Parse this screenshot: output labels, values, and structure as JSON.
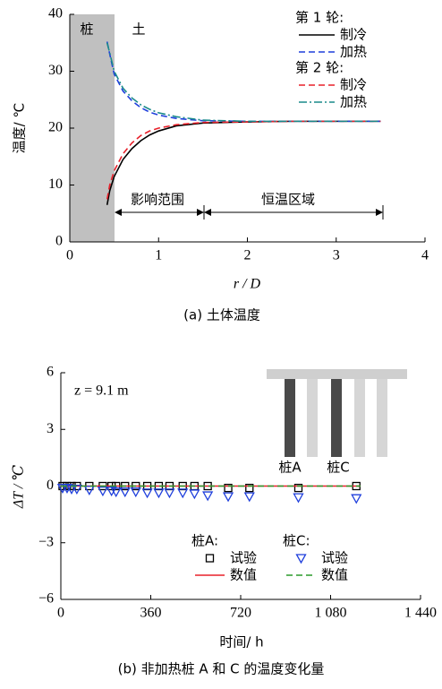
{
  "chart_data": [
    {
      "type": "line",
      "caption": "(a)  土体温度",
      "xlabel": "r / D",
      "ylabel": "温度/ ℃",
      "xlim": [
        0,
        4
      ],
      "ylim": [
        0,
        40
      ],
      "xticks": [
        0,
        1,
        2,
        3,
        4
      ],
      "yticks": [
        0,
        10,
        20,
        30,
        40
      ],
      "annotations": [
        "桩",
        "土",
        "影响范围",
        "恒温区域"
      ],
      "x": [
        0.42,
        0.45,
        0.5,
        0.6,
        0.7,
        0.8,
        0.9,
        1.0,
        1.2,
        1.5,
        2,
        2.5,
        3,
        3.5
      ],
      "groups": [
        {
          "name": "第 1 轮:",
          "series": [
            {
              "name": "制冷",
              "color": "#000000",
              "style": "solid",
              "values": [
                6.5,
                9,
                11.5,
                14.5,
                16.4,
                17.8,
                18.8,
                19.5,
                20.4,
                20.9,
                21.1,
                21.2,
                21.2,
                21.2
              ]
            },
            {
              "name": "加热",
              "color": "#1f3fdc",
              "style": "dashed",
              "values": [
                35.2,
                33,
                29.5,
                26.5,
                24.8,
                23.6,
                22.8,
                22.3,
                21.7,
                21.3,
                21.2,
                21.2,
                21.2,
                21.2
              ]
            }
          ]
        },
        {
          "name": "第 2 轮:",
          "series": [
            {
              "name": "制冷",
              "color": "#e8202a",
              "style": "dashed",
              "values": [
                7.5,
                10,
                12.5,
                15.5,
                17.4,
                18.7,
                19.5,
                20.0,
                20.6,
                21.0,
                21.1,
                21.2,
                21.2,
                21.2
              ]
            },
            {
              "name": "加热",
              "color": "#1a8a8a",
              "style": "dashdot",
              "values": [
                35,
                33.2,
                30,
                27,
                25.3,
                24.1,
                23.3,
                22.7,
                22,
                21.4,
                21.2,
                21.2,
                21.2,
                21.2
              ]
            }
          ]
        }
      ]
    },
    {
      "type": "line",
      "caption": "(b)  非加热桩 A 和 C 的温度变化量",
      "xlabel": "时间/ h",
      "ylabel": "ΔT / ℃",
      "xlim": [
        0,
        1440
      ],
      "ylim": [
        -6,
        6
      ],
      "xticks": [
        0,
        360,
        720,
        {
          "value": 1080,
          "label": "1 080"
        },
        {
          "value": 1440,
          "label": "1 440"
        }
      ],
      "yticks": [
        {
          "value": -6,
          "label": "−6"
        },
        {
          "value": -3,
          "label": "−3"
        },
        0,
        3,
        6
      ],
      "annotations": [
        "z = 9.1 m",
        "桩A",
        "桩C"
      ],
      "groups": [
        {
          "name": "桩A:",
          "series": [
            {
              "name": "试验",
              "color": "#000000",
              "marker": "square",
              "x": [
                7,
                25,
                43,
                64,
                114,
                168,
                203,
                221,
                257,
                300,
                346,
                392,
                435,
                488,
                535,
                588,
                670,
                755,
                951,
                1183
              ],
              "values": [
                0,
                0,
                0,
                0,
                0,
                0,
                0,
                0,
                0,
                0,
                0,
                0,
                0,
                0,
                0,
                0,
                -0.1,
                -0.1,
                -0.1,
                0
              ]
            },
            {
              "name": "数值",
              "color": "#e8202a",
              "style": "solid",
              "x": [
                0,
                1200
              ],
              "values": [
                0,
                0
              ]
            }
          ]
        },
        {
          "name": "桩C:",
          "series": [
            {
              "name": "试验",
              "color": "#1f3fdc",
              "marker": "triangle",
              "x": [
                7,
                25,
                43,
                64,
                114,
                168,
                203,
                221,
                257,
                300,
                346,
                392,
                435,
                488,
                535,
                588,
                670,
                755,
                951,
                1183
              ],
              "values": [
                -0.1,
                -0.1,
                -0.15,
                -0.15,
                -0.2,
                -0.25,
                -0.25,
                -0.3,
                -0.3,
                -0.3,
                -0.35,
                -0.35,
                -0.35,
                -0.35,
                -0.4,
                -0.5,
                -0.55,
                -0.55,
                -0.6,
                -0.65
              ]
            },
            {
              "name": "数值",
              "color": "#2a9a2a",
              "style": "dashed",
              "x": [
                0,
                1200
              ],
              "values": [
                0,
                0
              ]
            }
          ]
        }
      ]
    }
  ]
}
